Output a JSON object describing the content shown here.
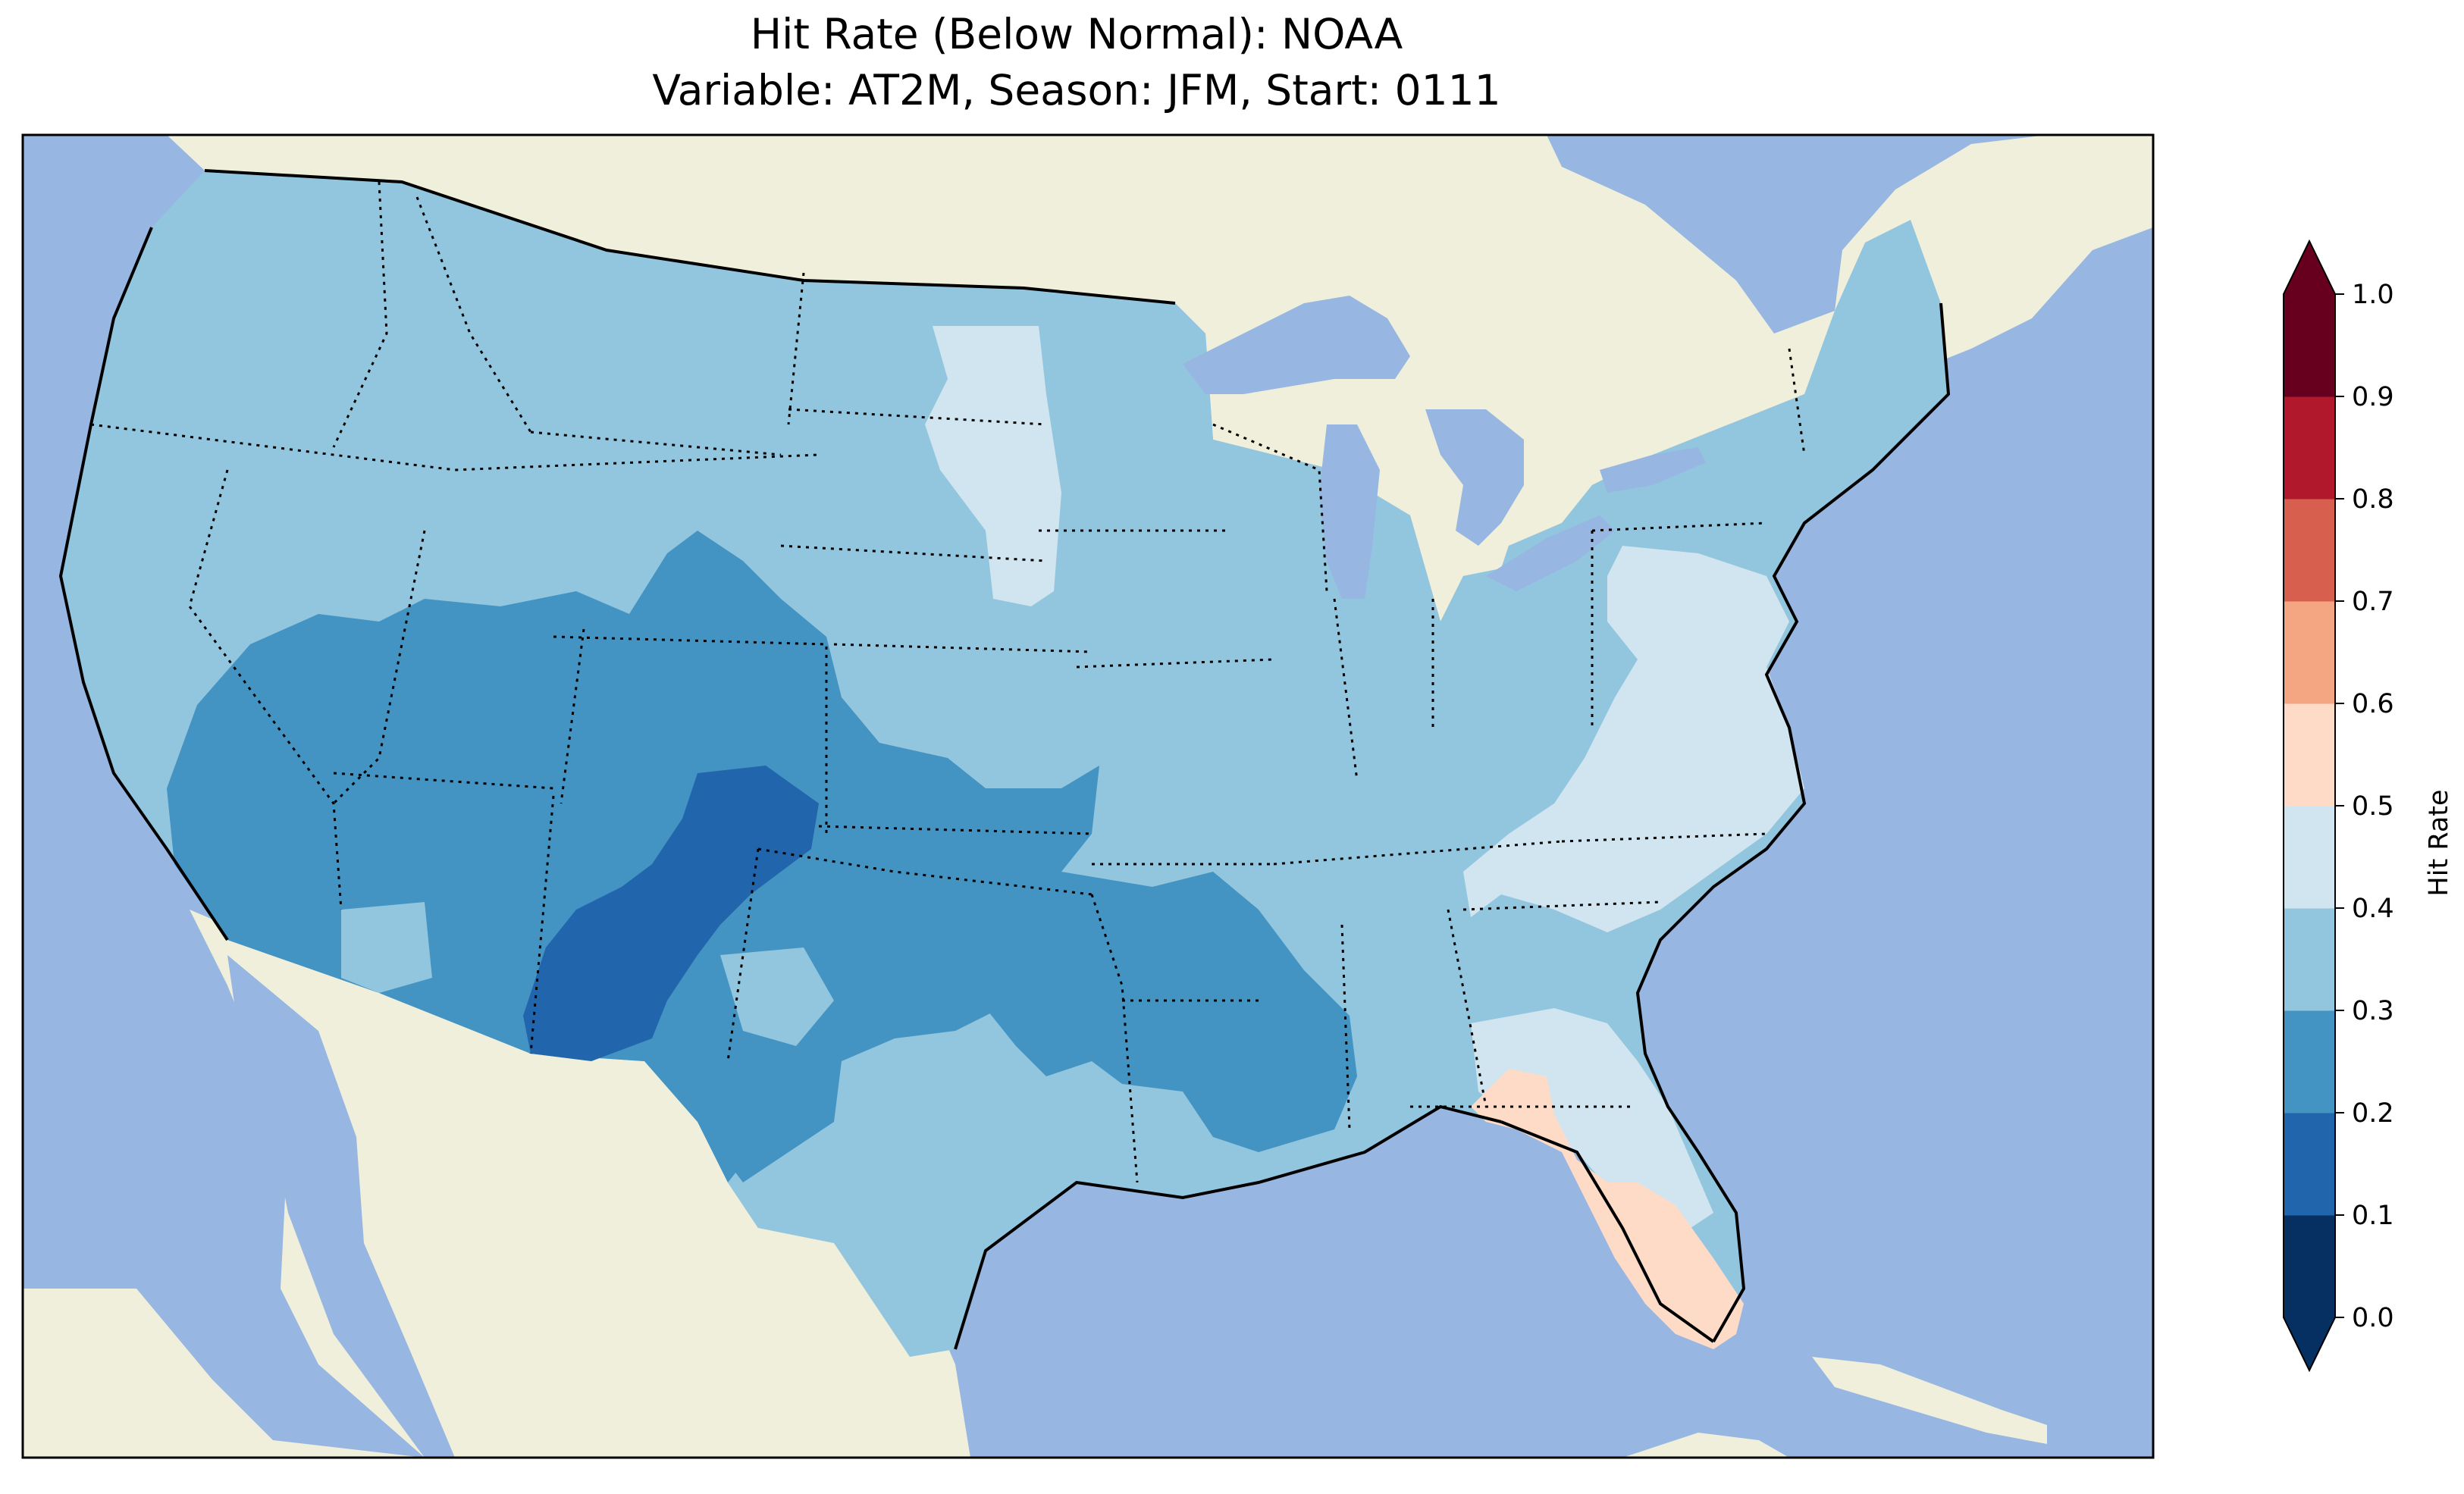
{
  "title": {
    "line1": "Hit Rate (Below Normal): NOAA",
    "line2": "Variable: AT2M, Season: JFM, Start: 0111"
  },
  "colors": {
    "ocean": "#97b6e1",
    "land": "#efefdb",
    "lakes": "#97b6e1",
    "coast": "#000000"
  },
  "colorbar": {
    "label": "Hit Rate",
    "ticks": [
      "0.0",
      "0.1",
      "0.2",
      "0.3",
      "0.4",
      "0.5",
      "0.6",
      "0.7",
      "0.8",
      "0.9",
      "1.0"
    ],
    "bins": [
      {
        "range": [
          0.0,
          0.1
        ],
        "color": "#053061"
      },
      {
        "range": [
          0.1,
          0.2
        ],
        "color": "#2166ac"
      },
      {
        "range": [
          0.2,
          0.3
        ],
        "color": "#4393c3"
      },
      {
        "range": [
          0.3,
          0.4
        ],
        "color": "#92c5de"
      },
      {
        "range": [
          0.4,
          0.5
        ],
        "color": "#d1e5f0"
      },
      {
        "range": [
          0.5,
          0.6
        ],
        "color": "#fddbc7"
      },
      {
        "range": [
          0.6,
          0.7
        ],
        "color": "#f4a582"
      },
      {
        "range": [
          0.7,
          0.8
        ],
        "color": "#d6604d"
      },
      {
        "range": [
          0.8,
          0.9
        ],
        "color": "#b2182b"
      },
      {
        "range": [
          0.9,
          1.0
        ],
        "color": "#67001f"
      }
    ],
    "extend_low_color": "#053061",
    "extend_high_color": "#67001f"
  },
  "map_data": {
    "type": "gridded-field",
    "variable": "Hit Rate",
    "regions": [
      {
        "name": "west-coast-and-northern-plains",
        "bin": "0.3-0.4"
      },
      {
        "name": "great-basin-southwest",
        "bin": "0.2-0.3"
      },
      {
        "name": "four-corners-new-mexico",
        "bin": "0.1-0.2"
      },
      {
        "name": "southern-plains-texas",
        "bin": "0.2-0.3"
      },
      {
        "name": "lower-mississippi-valley",
        "bin": "0.2-0.3"
      },
      {
        "name": "midwest-great-lakes",
        "bin": "0.3-0.4"
      },
      {
        "name": "northeast",
        "bin": "0.3-0.4"
      },
      {
        "name": "dakotas-strip",
        "bin": "0.4-0.5"
      },
      {
        "name": "mid-atlantic-carolinas",
        "bin": "0.4-0.5"
      },
      {
        "name": "southeast-georgia",
        "bin": "0.4-0.5"
      },
      {
        "name": "florida-peninsula",
        "bin": "0.5-0.6"
      }
    ]
  }
}
